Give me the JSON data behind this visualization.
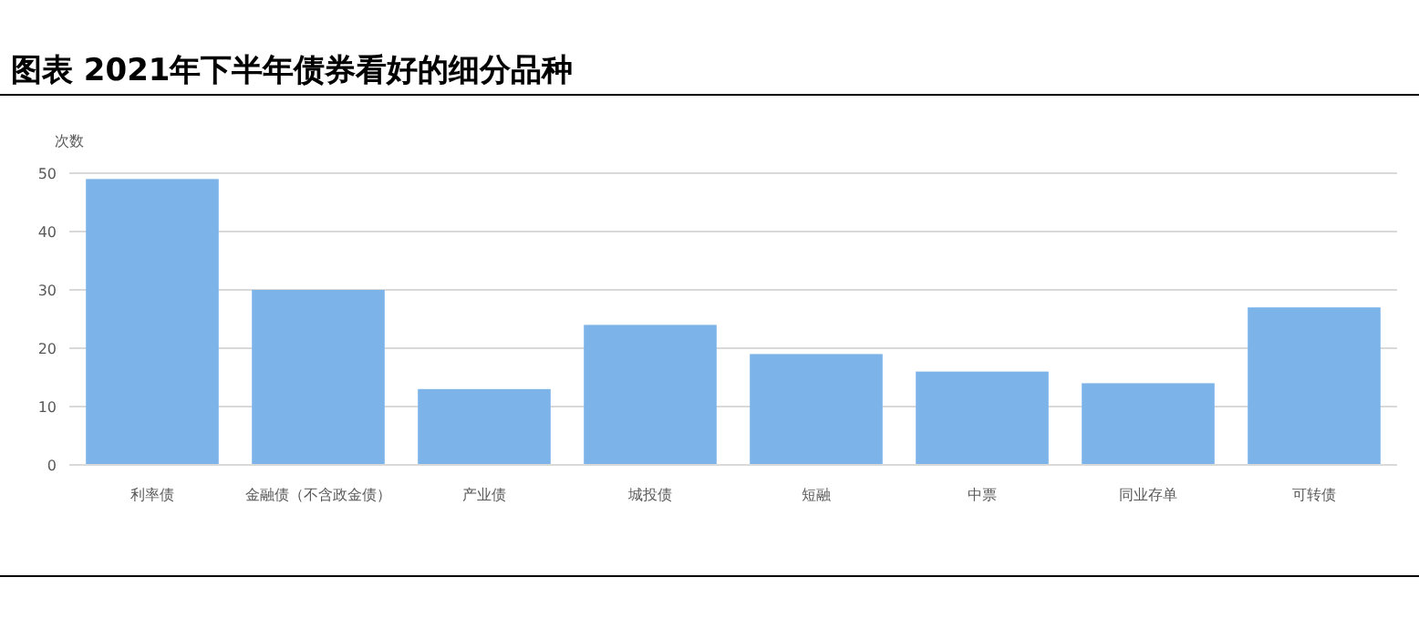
{
  "chart_data": {
    "type": "bar",
    "title": "图表 2021年下半年债券看好的细分品种",
    "ylabel": "次数",
    "categories": [
      "利率债",
      "金融债（不含政金债）",
      "产业债",
      "城投债",
      "短融",
      "中票",
      "同业存单",
      "可转债"
    ],
    "values": [
      49,
      30,
      13,
      24,
      19,
      16,
      14,
      27
    ],
    "color": "#7cb4ea",
    "ylim": [
      0,
      50
    ],
    "yticks": [
      0,
      10,
      20,
      30,
      40,
      50
    ],
    "grid": "y"
  }
}
